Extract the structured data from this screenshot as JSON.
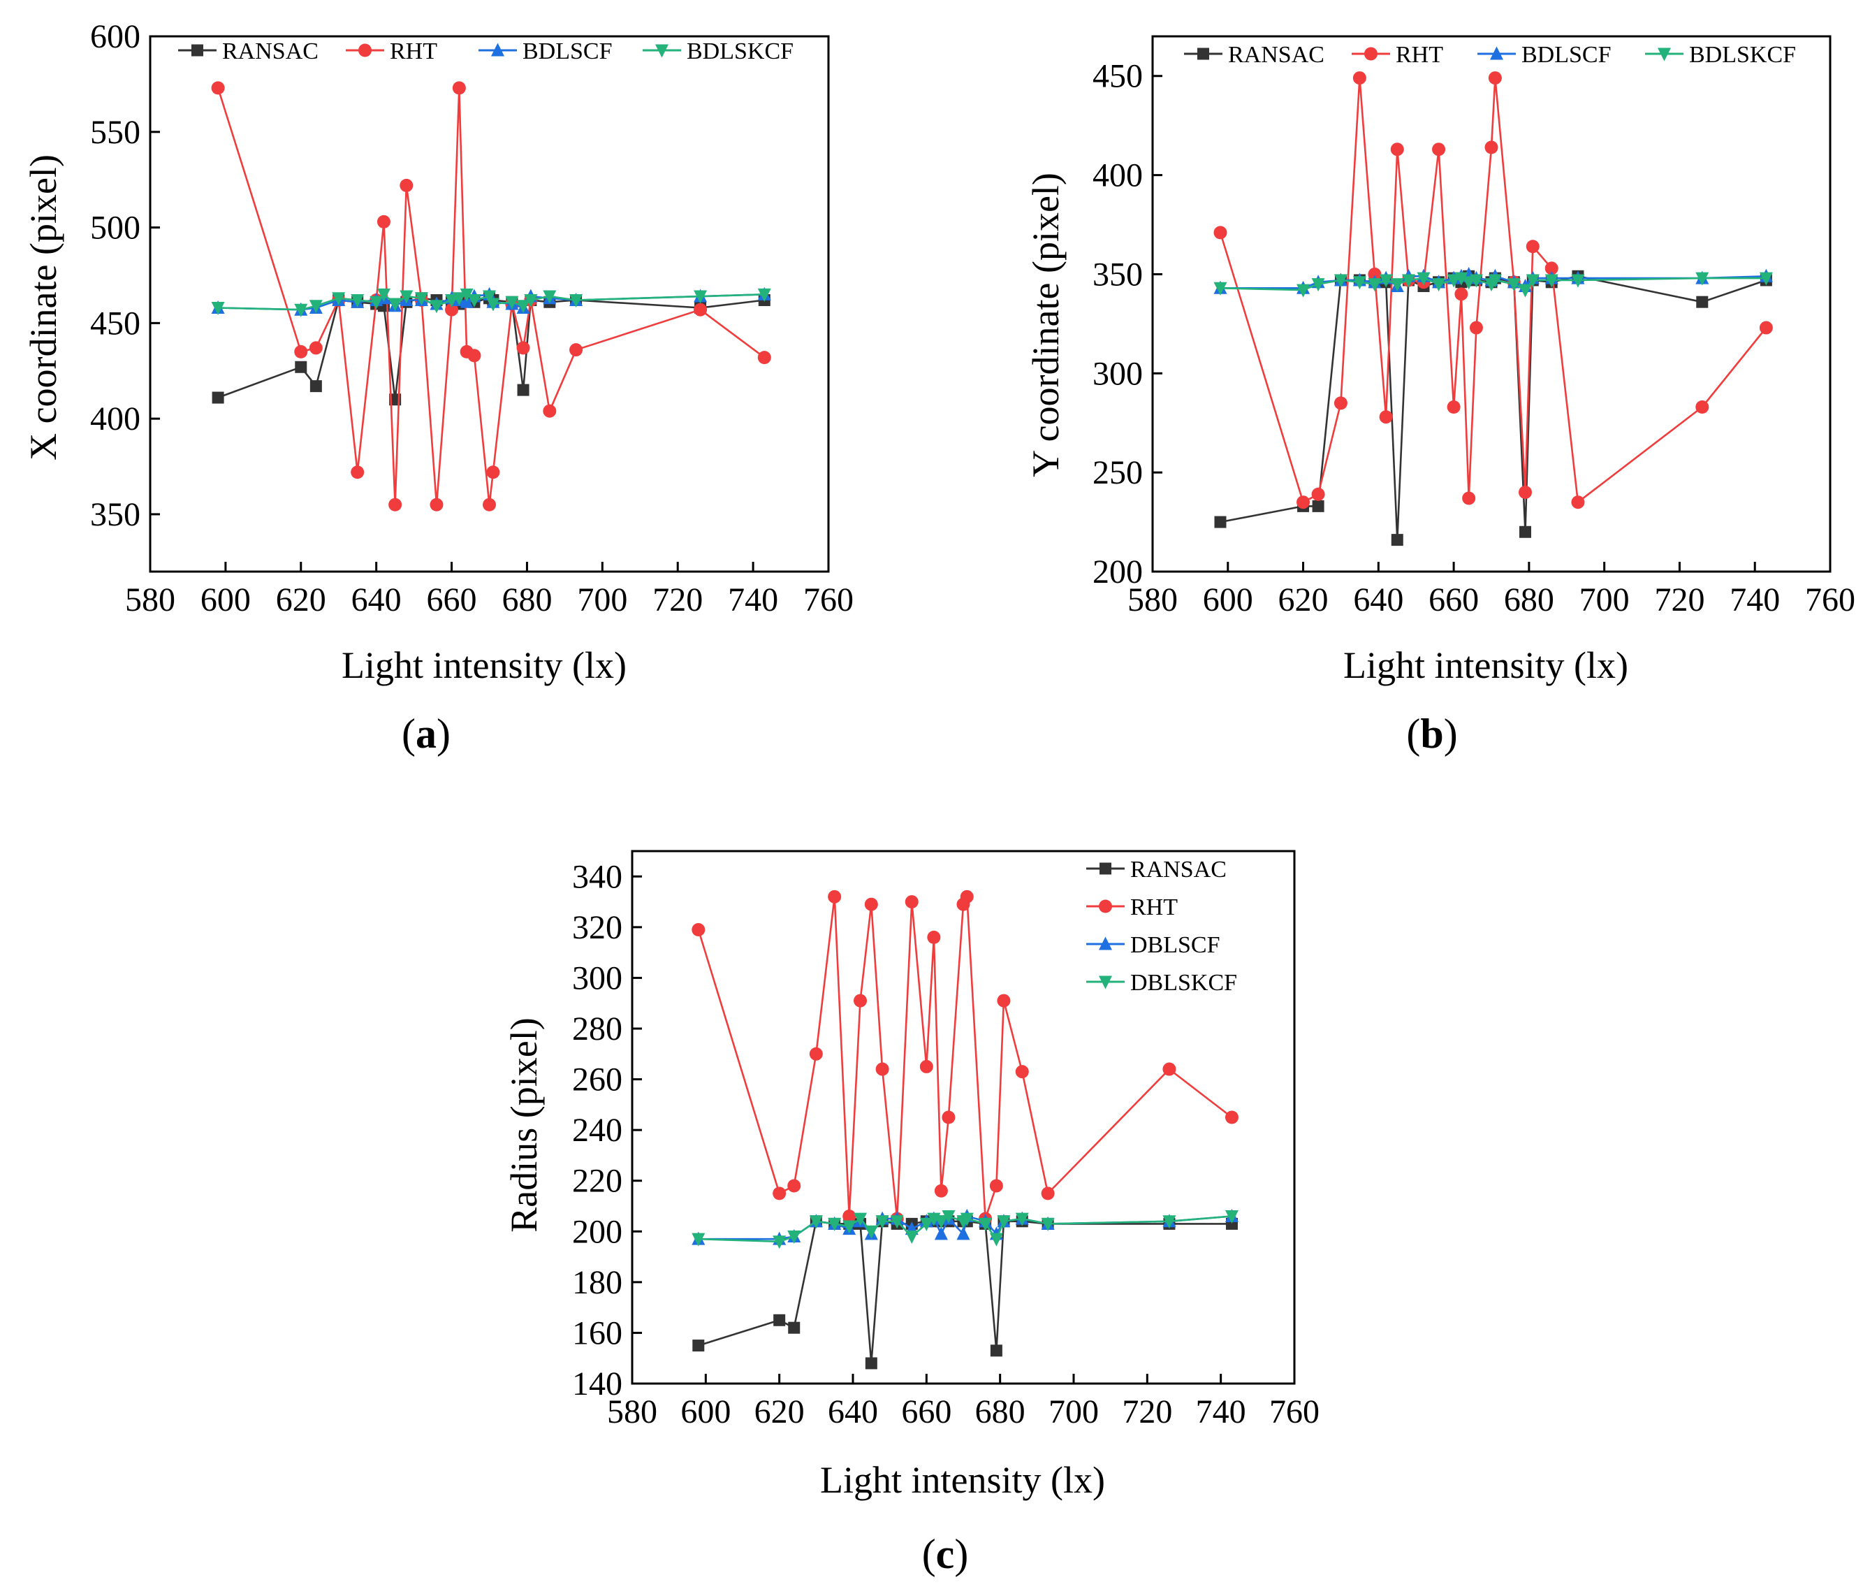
{
  "colors": {
    "RANSAC": "#333333",
    "RHT": "#f03c3c",
    "BDLSCF": "#1e6fe0",
    "BDLSKCF": "#22b27a"
  },
  "chart_data": [
    {
      "panel": "a",
      "type": "line",
      "xlabel": "Light intensity (lx)",
      "ylabel": "X coordinate (pixel)",
      "xlim": [
        580,
        760
      ],
      "ylim": [
        320,
        600
      ],
      "xticks": [
        580,
        600,
        620,
        640,
        660,
        680,
        700,
        720,
        740,
        760
      ],
      "yticks": [
        350,
        400,
        450,
        500,
        550,
        600
      ],
      "legend_position": "top",
      "x": [
        598,
        620,
        624,
        630,
        635,
        640,
        642,
        645,
        648,
        652,
        656,
        660,
        662,
        664,
        666,
        670,
        671,
        676,
        679,
        681,
        686,
        693,
        726,
        743
      ],
      "series": [
        {
          "name": "RANSAC",
          "marker": "square",
          "values": [
            411,
            427,
            417,
            462,
            461,
            460,
            459,
            410,
            461,
            463,
            462,
            461,
            460,
            462,
            461,
            463,
            462,
            461,
            415,
            462,
            461,
            462,
            458,
            462
          ]
        },
        {
          "name": "RHT",
          "marker": "circle",
          "values": [
            573,
            435,
            437,
            462,
            372,
            462,
            503,
            355,
            522,
            462,
            355,
            457,
            573,
            435,
            433,
            355,
            372,
            460,
            437,
            462,
            404,
            436,
            457,
            432
          ]
        },
        {
          "name": "BDLSCF",
          "marker": "triangle-up",
          "values": [
            458,
            457,
            458,
            462,
            461,
            462,
            463,
            459,
            462,
            462,
            460,
            463,
            462,
            461,
            464,
            465,
            461,
            460,
            458,
            464,
            463,
            462,
            464,
            465
          ]
        },
        {
          "name": "BDLSKCF",
          "marker": "triangle-down",
          "values": [
            458,
            457,
            459,
            463,
            462,
            461,
            465,
            460,
            464,
            463,
            459,
            462,
            463,
            465,
            462,
            464,
            460,
            461,
            459,
            462,
            464,
            462,
            464,
            465
          ]
        }
      ]
    },
    {
      "panel": "b",
      "type": "line",
      "xlabel": "Light intensity (lx)",
      "ylabel": "Y coordinate (pixel)",
      "xlim": [
        580,
        760
      ],
      "ylim": [
        200,
        470
      ],
      "xticks": [
        580,
        600,
        620,
        640,
        660,
        680,
        700,
        720,
        740,
        760
      ],
      "yticks": [
        200,
        250,
        300,
        350,
        400,
        450
      ],
      "legend_position": "top",
      "x": [
        598,
        620,
        624,
        630,
        635,
        639,
        642,
        645,
        648,
        652,
        656,
        660,
        662,
        664,
        666,
        670,
        671,
        676,
        679,
        681,
        686,
        693,
        726,
        743
      ],
      "series": [
        {
          "name": "RANSAC",
          "marker": "square",
          "values": [
            225,
            233,
            233,
            347,
            347,
            346,
            346,
            216,
            347,
            344,
            346,
            348,
            346,
            349,
            347,
            346,
            348,
            346,
            220,
            347,
            346,
            349,
            336,
            347
          ]
        },
        {
          "name": "RHT",
          "marker": "circle",
          "values": [
            371,
            235,
            239,
            285,
            449,
            350,
            278,
            413,
            347,
            346,
            413,
            283,
            340,
            237,
            323,
            414,
            449,
            346,
            240,
            364,
            353,
            235,
            283,
            323
          ]
        },
        {
          "name": "BDLSCF",
          "marker": "triangle-up",
          "values": [
            343,
            343,
            346,
            347,
            347,
            346,
            348,
            344,
            349,
            349,
            346,
            348,
            349,
            350,
            348,
            347,
            349,
            346,
            344,
            348,
            348,
            348,
            348,
            349
          ]
        },
        {
          "name": "BDLSKCF",
          "marker": "triangle-down",
          "values": [
            343,
            342,
            345,
            347,
            346,
            345,
            347,
            345,
            347,
            348,
            345,
            347,
            348,
            346,
            347,
            345,
            347,
            345,
            342,
            347,
            347,
            347,
            348,
            348
          ]
        }
      ]
    },
    {
      "panel": "c",
      "type": "line",
      "xlabel": "Light intensity (lx)",
      "ylabel": "Radius (pixel)",
      "xlim": [
        580,
        760
      ],
      "ylim": [
        140,
        350
      ],
      "xticks": [
        580,
        600,
        620,
        640,
        660,
        680,
        700,
        720,
        740,
        760
      ],
      "yticks": [
        140,
        160,
        180,
        200,
        220,
        240,
        260,
        280,
        300,
        320,
        340
      ],
      "legend_position": "top-right",
      "x": [
        598,
        620,
        624,
        630,
        635,
        639,
        642,
        645,
        648,
        652,
        656,
        660,
        662,
        664,
        666,
        670,
        671,
        676,
        679,
        681,
        686,
        693,
        726,
        743
      ],
      "series": [
        {
          "name": "RANSAC",
          "marker": "square",
          "values": [
            155,
            165,
            162,
            204,
            203,
            203,
            203,
            148,
            204,
            203,
            203,
            204,
            204,
            204,
            204,
            204,
            204,
            203,
            153,
            204,
            204,
            203,
            203,
            203
          ]
        },
        {
          "name": "RHT",
          "marker": "circle",
          "values": [
            319,
            215,
            218,
            270,
            332,
            206,
            291,
            329,
            264,
            205,
            330,
            265,
            316,
            216,
            245,
            329,
            332,
            205,
            218,
            291,
            263,
            215,
            264,
            245
          ]
        },
        {
          "name": "DBLSCF",
          "marker": "triangle-up",
          "values": [
            197,
            197,
            198,
            204,
            203,
            201,
            204,
            199,
            205,
            205,
            201,
            204,
            205,
            199,
            205,
            199,
            206,
            204,
            199,
            204,
            205,
            203,
            204,
            206
          ]
        },
        {
          "name": "DBLSKCF",
          "marker": "triangle-down",
          "values": [
            197,
            196,
            198,
            204,
            203,
            202,
            205,
            200,
            204,
            204,
            198,
            203,
            205,
            204,
            206,
            204,
            205,
            203,
            197,
            204,
            205,
            203,
            204,
            206
          ]
        }
      ]
    }
  ],
  "panel_labels": [
    {
      "open": "(",
      "letter": "a",
      "close": ")"
    },
    {
      "open": "(",
      "letter": "b",
      "close": ")"
    },
    {
      "open": "(",
      "letter": "c",
      "close": ")"
    }
  ]
}
